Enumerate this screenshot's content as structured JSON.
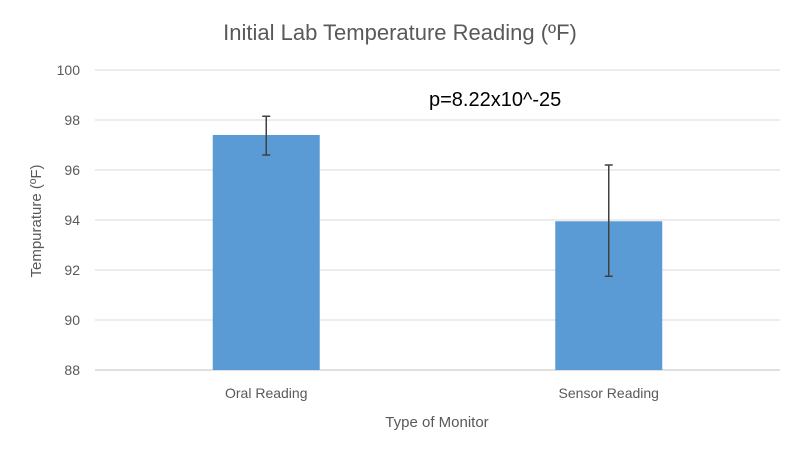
{
  "chart_data": {
    "type": "bar",
    "title": "Initial Lab Temperature Reading (ºF)",
    "xlabel": "Type of Monitor",
    "ylabel": "Tempurature (ºF)",
    "categories": [
      "Oral Reading",
      "Sensor Reading"
    ],
    "values": [
      97.4,
      93.95
    ],
    "error_low": [
      96.6,
      91.75
    ],
    "error_high": [
      98.15,
      96.2
    ],
    "ylim": [
      88,
      100
    ],
    "yticks": [
      88,
      90,
      92,
      94,
      96,
      98,
      100
    ],
    "grid": true,
    "annotation": "p=8.22x10^-25",
    "colors": {
      "bar": "#5B9BD5",
      "grid": "#D9D9D9",
      "errorbar": "#404040"
    }
  }
}
